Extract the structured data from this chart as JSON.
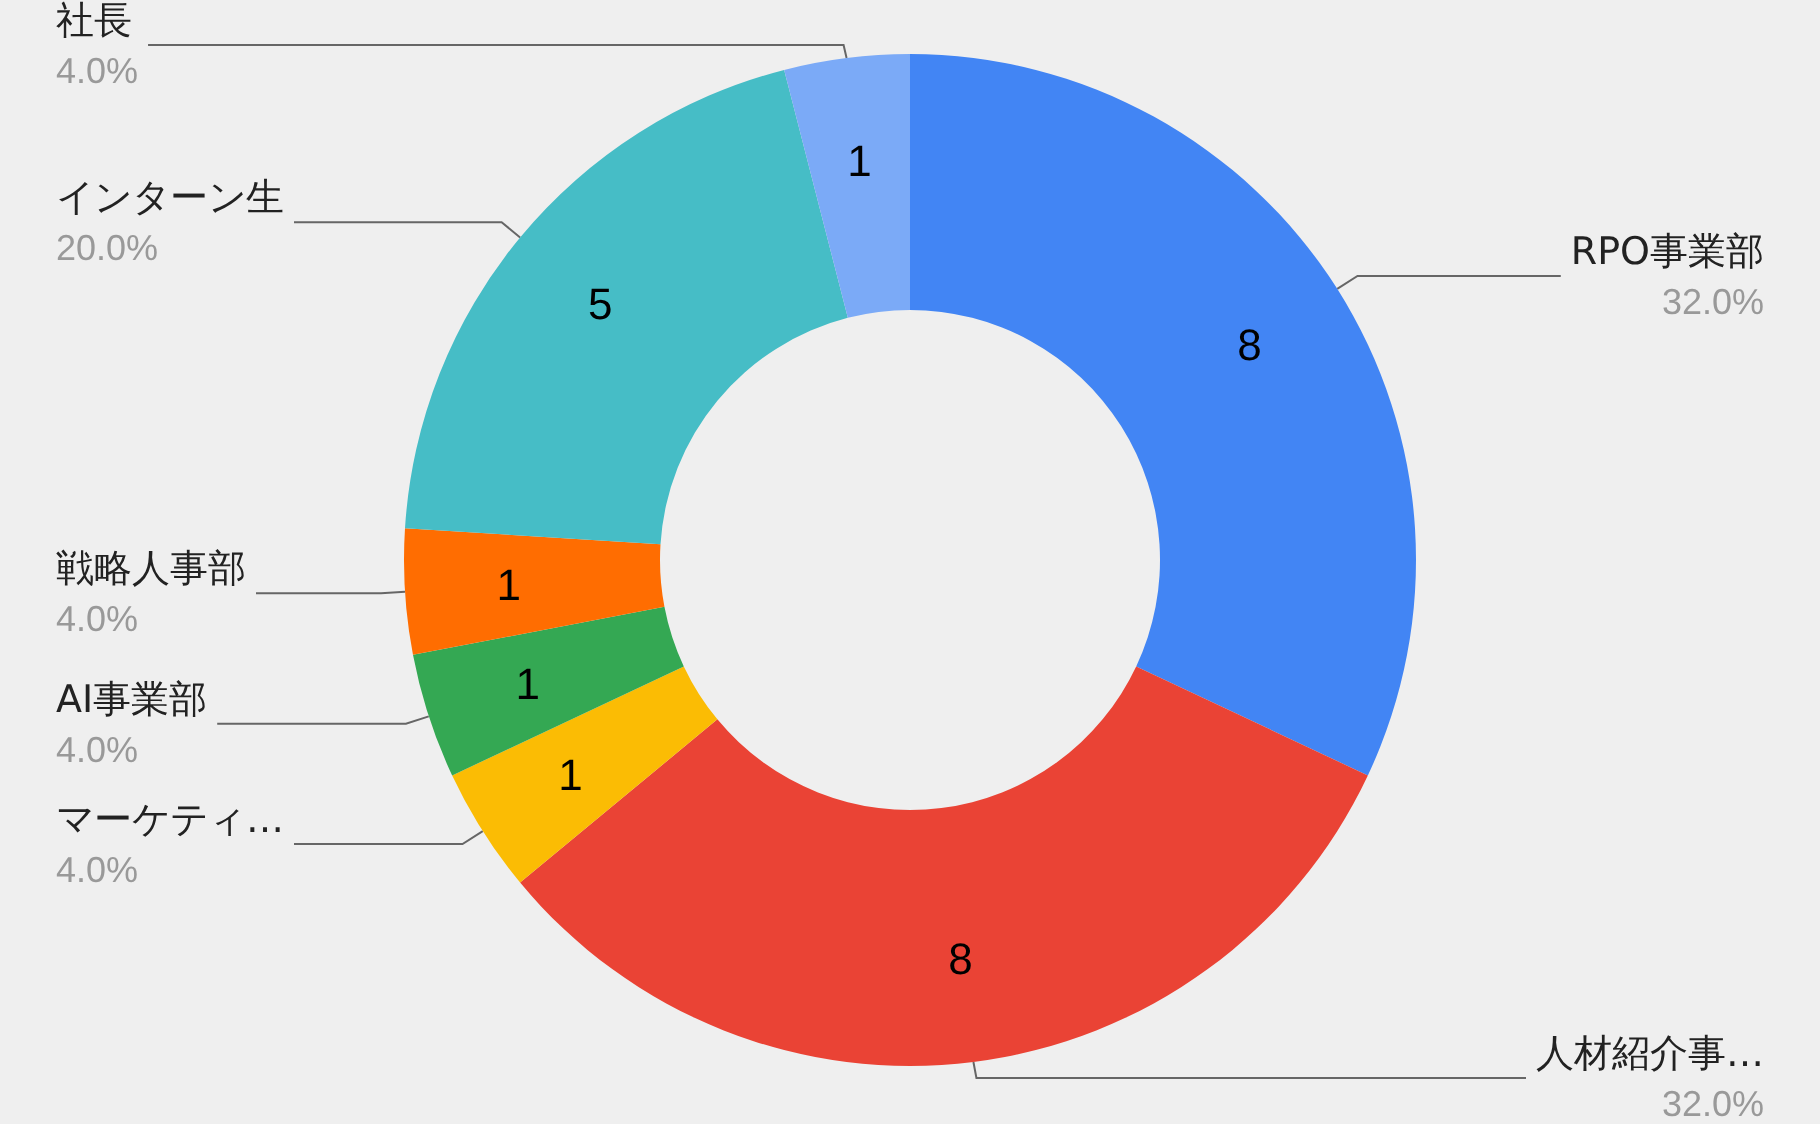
{
  "chart_data": {
    "type": "donut",
    "categories": [
      "RPO事業部",
      "人材紹介事…",
      "マーケティ…",
      "AI事業部",
      "戦略人事部",
      "インターン生",
      "社長"
    ],
    "values": [
      8,
      8,
      1,
      1,
      1,
      5,
      1
    ],
    "colors": [
      "#4285f4",
      "#ea4335",
      "#fbbc04",
      "#34a853",
      "#ff6d01",
      "#46bdc6",
      "#7baaf7"
    ],
    "annotations": [
      "32.0%",
      "32.0%",
      "4.0%",
      "4.0%",
      "4.0%",
      "20.0%",
      "4.0%"
    ],
    "data_labels": true,
    "legend": false
  }
}
